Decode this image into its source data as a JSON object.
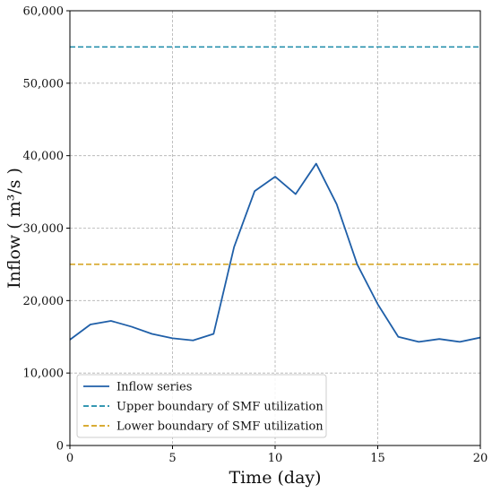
{
  "chart_data": {
    "type": "line",
    "xlabel": "Time (day)",
    "ylabel": "Inflow ( m³/s )",
    "xlim": [
      0,
      20
    ],
    "ylim": [
      0,
      60000
    ],
    "xticks": [
      0,
      5,
      10,
      15,
      20
    ],
    "xtick_labels": [
      "0",
      "5",
      "10",
      "15",
      "20"
    ],
    "yticks": [
      0,
      10000,
      20000,
      30000,
      40000,
      50000,
      60000
    ],
    "ytick_labels": [
      "0",
      "10,000",
      "20,000",
      "30,000",
      "40,000",
      "50,000",
      "60,000"
    ],
    "grid": true,
    "legend_position": "bottom-left",
    "series": [
      {
        "name": "Inflow series",
        "style": "solid",
        "color": "#1f5fa8",
        "x": [
          0,
          1,
          2,
          3,
          4,
          5,
          6,
          7,
          8,
          9,
          10,
          11,
          12,
          13,
          14,
          15,
          16,
          17,
          18,
          19,
          20
        ],
        "values": [
          14600,
          16700,
          17200,
          16400,
          15400,
          14800,
          14500,
          15400,
          27400,
          35100,
          37100,
          34700,
          38900,
          33300,
          25000,
          19500,
          15000,
          14300,
          14700,
          14300,
          14900
        ]
      }
    ],
    "hlines": [
      {
        "name": "Upper boundary of SMF utilization",
        "value": 55000,
        "style": "dashed",
        "color": "#1a8aa8"
      },
      {
        "name": "Lower boundary of SMF utilization",
        "value": 25000,
        "style": "dashed",
        "color": "#d4a017"
      }
    ]
  }
}
